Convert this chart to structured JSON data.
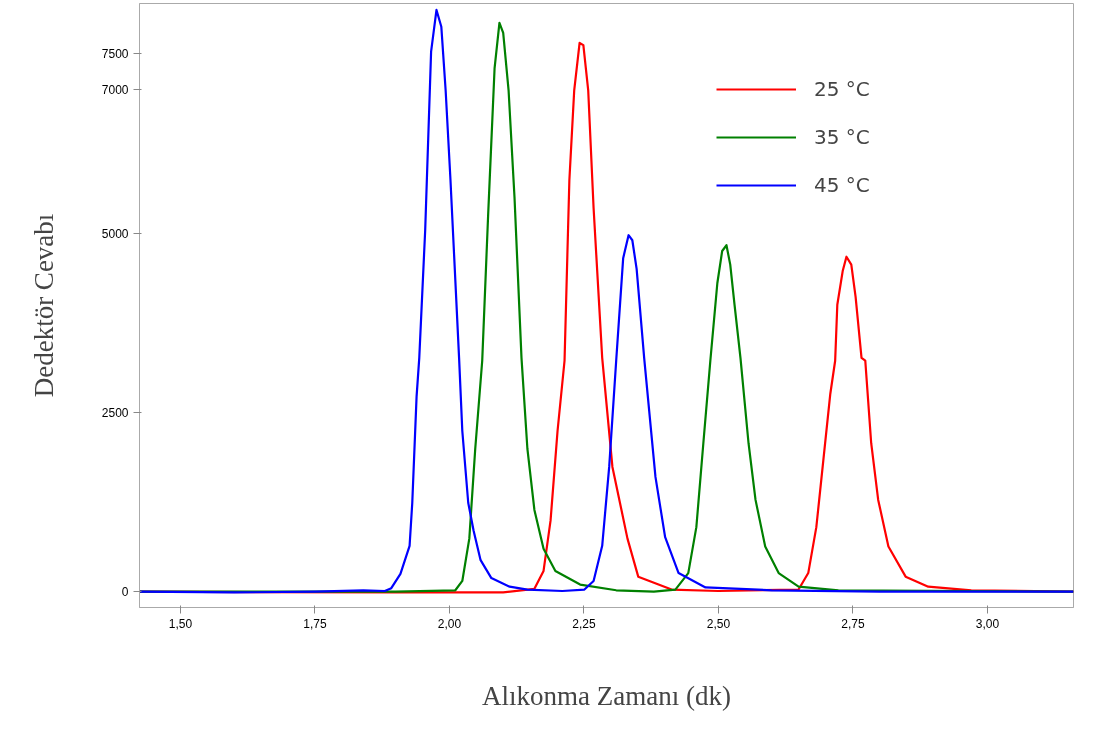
{
  "chart_data": {
    "type": "line",
    "xlabel": "Alıkonma Zamanı (dk)",
    "ylabel": "Dedektör Cevabı",
    "xlim": [
      1.424,
      3.16
    ],
    "ylim": [
      -220,
      8200
    ],
    "xticks": [
      {
        "value": 1.5,
        "label": "1,50"
      },
      {
        "value": 1.75,
        "label": "1,75"
      },
      {
        "value": 2.0,
        "label": "2,00"
      },
      {
        "value": 2.25,
        "label": "2,25"
      },
      {
        "value": 2.5,
        "label": "2,50"
      },
      {
        "value": 2.75,
        "label": "2,75"
      },
      {
        "value": 3.0,
        "label": "3,00"
      }
    ],
    "yticks": [
      0,
      2500,
      5000,
      7000,
      7500
    ],
    "grid": false,
    "legend": "top right",
    "marker": "none",
    "line_style": "solid",
    "series": [
      {
        "name": "25 °C",
        "color": "#ff0000",
        "x": [
          1.424,
          1.9,
          2.1,
          2.158,
          2.175,
          2.188,
          2.201,
          2.214,
          2.223,
          2.232,
          2.242,
          2.249,
          2.258,
          2.268,
          2.284,
          2.303,
          2.331,
          2.351,
          2.413,
          2.5,
          2.649,
          2.667,
          2.682,
          2.695,
          2.708,
          2.717,
          2.721,
          2.731,
          2.738,
          2.747,
          2.755,
          2.766,
          2.773,
          2.784,
          2.797,
          2.816,
          2.848,
          2.89,
          2.97,
          3.16
        ],
        "values": [
          0,
          -10,
          -10,
          40,
          290,
          990,
          2240,
          3220,
          5740,
          6990,
          7650,
          7620,
          6990,
          5350,
          3260,
          1740,
          740,
          210,
          30,
          10,
          30,
          260,
          900,
          1830,
          2760,
          3220,
          4000,
          4470,
          4670,
          4560,
          4110,
          3260,
          3220,
          2070,
          1280,
          630,
          210,
          70,
          20,
          0
        ]
      },
      {
        "name": "35 °C",
        "color": "#008000",
        "x": [
          1.424,
          1.9,
          2.011,
          2.024,
          2.037,
          2.048,
          2.061,
          2.072,
          2.084,
          2.093,
          2.1,
          2.11,
          2.121,
          2.134,
          2.145,
          2.158,
          2.175,
          2.197,
          2.243,
          2.31,
          2.38,
          2.42,
          2.444,
          2.459,
          2.472,
          2.485,
          2.498,
          2.507,
          2.515,
          2.522,
          2.53,
          2.541,
          2.556,
          2.569,
          2.587,
          2.612,
          2.649,
          2.723,
          3.16
        ],
        "values": [
          0,
          0,
          20,
          150,
          740,
          1990,
          3220,
          5250,
          7300,
          7930,
          7790,
          6990,
          5500,
          3260,
          1990,
          1140,
          600,
          290,
          100,
          20,
          0,
          30,
          260,
          900,
          2070,
          3220,
          4300,
          4750,
          4830,
          4560,
          4000,
          3260,
          2070,
          1280,
          630,
          260,
          70,
          20,
          0
        ]
      },
      {
        "name": "45 °C",
        "color": "#0000ff",
        "x": [
          1.424,
          1.6,
          1.75,
          1.84,
          1.88,
          1.892,
          1.909,
          1.926,
          1.931,
          1.939,
          1.944,
          1.955,
          1.966,
          1.976,
          1.985,
          1.993,
          2.002,
          2.018,
          2.024,
          2.035,
          2.045,
          2.058,
          2.078,
          2.112,
          2.145,
          2.21,
          2.251,
          2.268,
          2.284,
          2.297,
          2.31,
          2.323,
          2.333,
          2.34,
          2.348,
          2.362,
          2.383,
          2.401,
          2.426,
          2.476,
          2.599,
          2.8,
          3.16
        ],
        "values": [
          0,
          -10,
          0,
          20,
          10,
          50,
          250,
          640,
          1240,
          2720,
          3260,
          5040,
          7530,
          8110,
          7875,
          6990,
          5740,
          3260,
          2240,
          1240,
          850,
          440,
          190,
          70,
          30,
          10,
          30,
          150,
          640,
          1740,
          3220,
          4650,
          4970,
          4900,
          4500,
          3260,
          1600,
          760,
          260,
          60,
          20,
          0,
          0
        ]
      }
    ]
  }
}
